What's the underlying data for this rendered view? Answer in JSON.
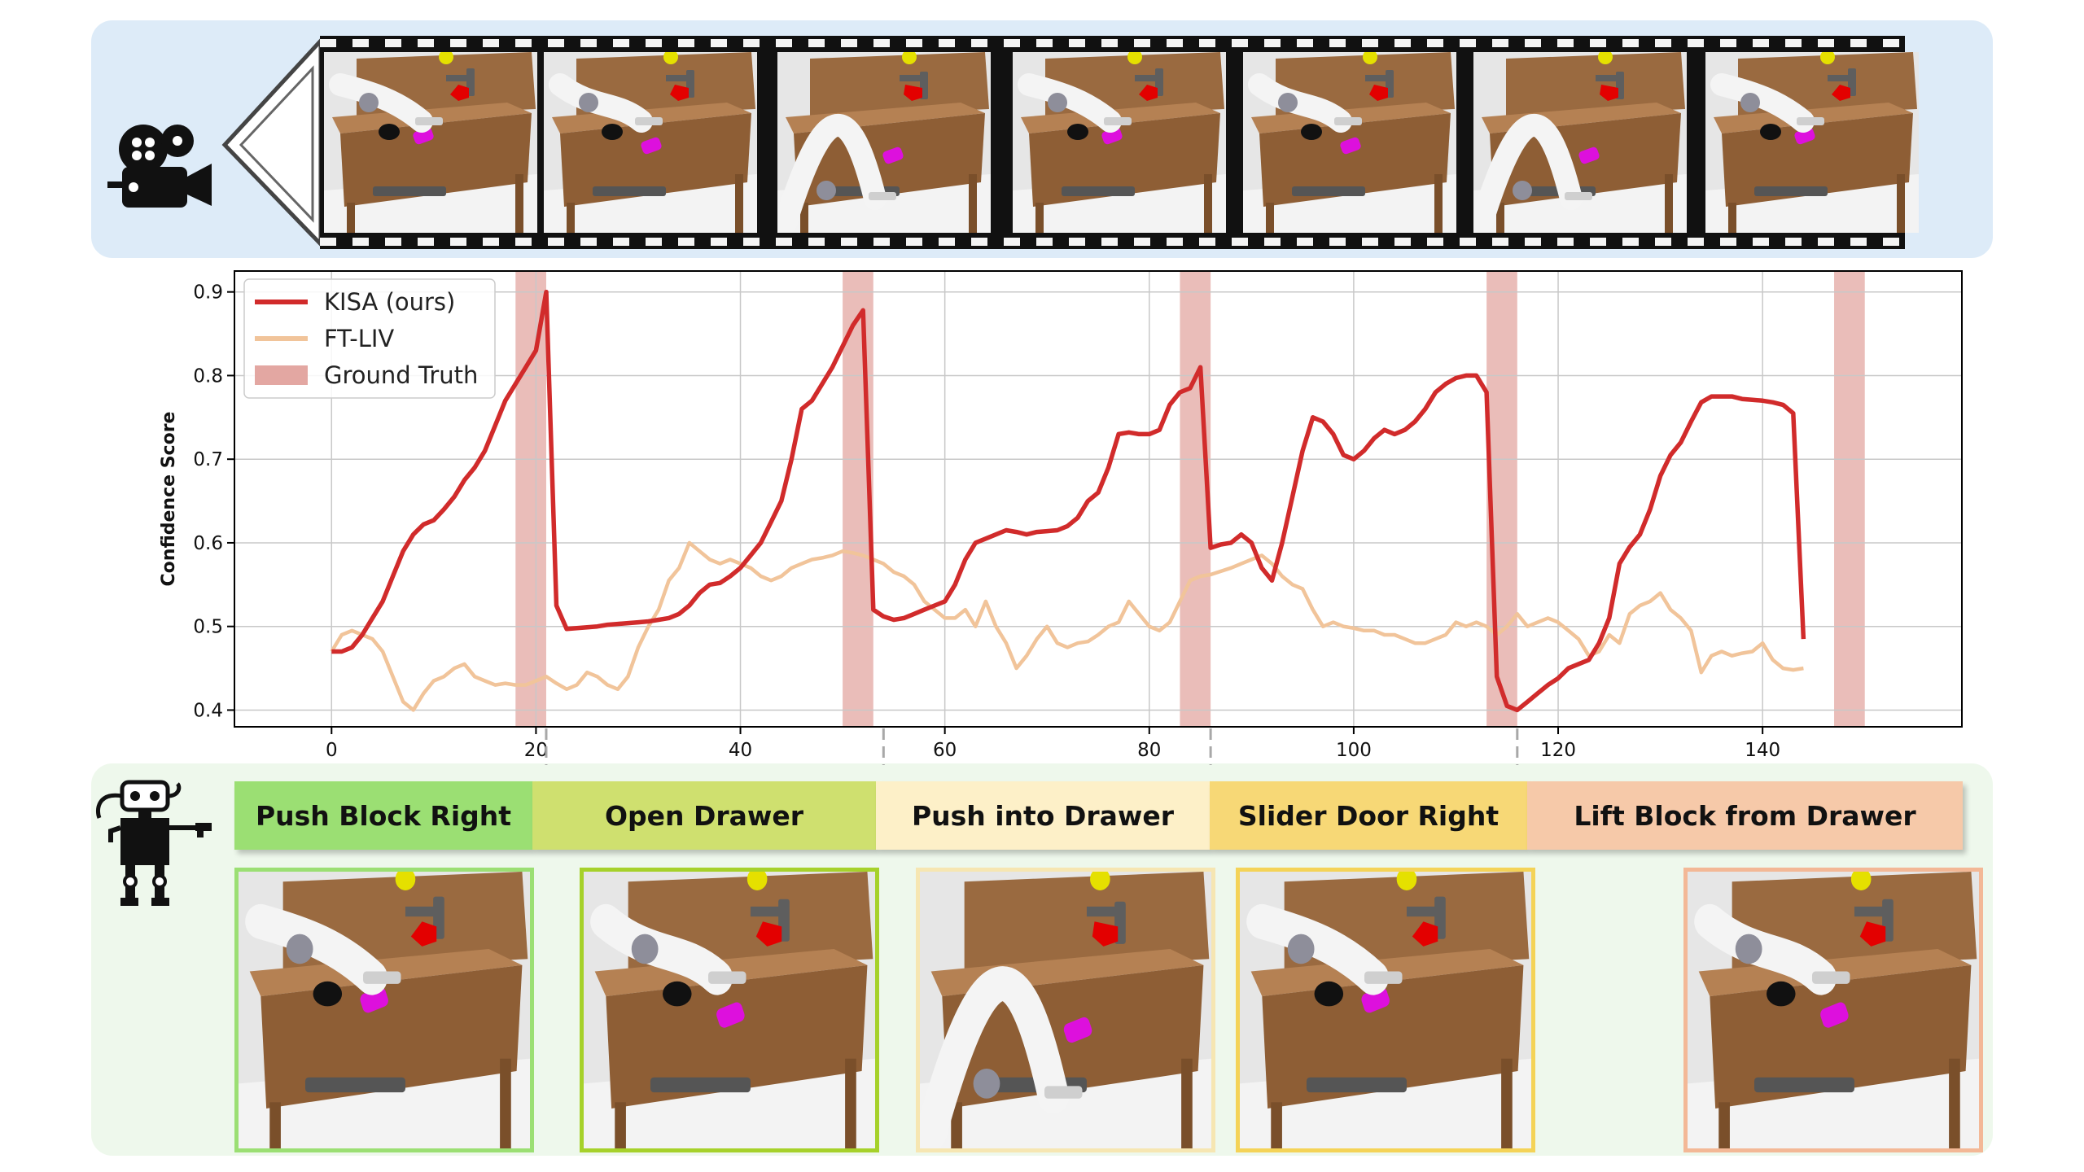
{
  "chart_data": {
    "type": "line",
    "xlabel": "",
    "ylabel": "Confidence Score",
    "xlim": [
      -9.5,
      159.5
    ],
    "ylim": [
      0.38,
      0.925
    ],
    "xticks": [
      0,
      20,
      40,
      60,
      80,
      100,
      120,
      140
    ],
    "yticks": [
      0.4,
      0.5,
      0.6,
      0.7,
      0.8,
      0.9
    ],
    "grid": true,
    "legend_position": "top-left",
    "series": [
      {
        "name": "KISA (ours)",
        "color": "#d12b2b",
        "points": [
          [
            0,
            0.47
          ],
          [
            1,
            0.47
          ],
          [
            2,
            0.475
          ],
          [
            3,
            0.49
          ],
          [
            4,
            0.51
          ],
          [
            5,
            0.53
          ],
          [
            6,
            0.56
          ],
          [
            7,
            0.59
          ],
          [
            8,
            0.61
          ],
          [
            9,
            0.622
          ],
          [
            10,
            0.627
          ],
          [
            11,
            0.64
          ],
          [
            12,
            0.655
          ],
          [
            13,
            0.675
          ],
          [
            14,
            0.69
          ],
          [
            15,
            0.71
          ],
          [
            16,
            0.74
          ],
          [
            17,
            0.77
          ],
          [
            18,
            0.79
          ],
          [
            19,
            0.81
          ],
          [
            20,
            0.83
          ],
          [
            21,
            0.9
          ],
          [
            22,
            0.525
          ],
          [
            23,
            0.497
          ],
          [
            24,
            0.498
          ],
          [
            25,
            0.499
          ],
          [
            26,
            0.5
          ],
          [
            27,
            0.502
          ],
          [
            28,
            0.503
          ],
          [
            29,
            0.504
          ],
          [
            30,
            0.505
          ],
          [
            31,
            0.506
          ],
          [
            32,
            0.508
          ],
          [
            33,
            0.51
          ],
          [
            34,
            0.515
          ],
          [
            35,
            0.525
          ],
          [
            36,
            0.54
          ],
          [
            37,
            0.55
          ],
          [
            38,
            0.552
          ],
          [
            39,
            0.56
          ],
          [
            40,
            0.57
          ],
          [
            41,
            0.585
          ],
          [
            42,
            0.6
          ],
          [
            43,
            0.625
          ],
          [
            44,
            0.65
          ],
          [
            45,
            0.7
          ],
          [
            46,
            0.76
          ],
          [
            47,
            0.77
          ],
          [
            48,
            0.79
          ],
          [
            49,
            0.81
          ],
          [
            50,
            0.835
          ],
          [
            51,
            0.86
          ],
          [
            52,
            0.878
          ],
          [
            53,
            0.52
          ],
          [
            54,
            0.512
          ],
          [
            55,
            0.508
          ],
          [
            56,
            0.51
          ],
          [
            57,
            0.515
          ],
          [
            58,
            0.52
          ],
          [
            59,
            0.525
          ],
          [
            60,
            0.53
          ],
          [
            61,
            0.55
          ],
          [
            62,
            0.58
          ],
          [
            63,
            0.6
          ],
          [
            64,
            0.605
          ],
          [
            65,
            0.61
          ],
          [
            66,
            0.615
          ],
          [
            67,
            0.613
          ],
          [
            68,
            0.61
          ],
          [
            69,
            0.613
          ],
          [
            70,
            0.614
          ],
          [
            71,
            0.615
          ],
          [
            72,
            0.62
          ],
          [
            73,
            0.63
          ],
          [
            74,
            0.65
          ],
          [
            75,
            0.66
          ],
          [
            76,
            0.69
          ],
          [
            77,
            0.73
          ],
          [
            78,
            0.732
          ],
          [
            79,
            0.73
          ],
          [
            80,
            0.73
          ],
          [
            81,
            0.735
          ],
          [
            82,
            0.765
          ],
          [
            83,
            0.78
          ],
          [
            84,
            0.785
          ],
          [
            85,
            0.81
          ],
          [
            86,
            0.594
          ],
          [
            87,
            0.598
          ],
          [
            88,
            0.6
          ],
          [
            89,
            0.61
          ],
          [
            90,
            0.6
          ],
          [
            91,
            0.57
          ],
          [
            92,
            0.555
          ],
          [
            93,
            0.6
          ],
          [
            94,
            0.655
          ],
          [
            95,
            0.71
          ],
          [
            96,
            0.75
          ],
          [
            97,
            0.745
          ],
          [
            98,
            0.73
          ],
          [
            99,
            0.705
          ],
          [
            100,
            0.7
          ],
          [
            101,
            0.71
          ],
          [
            102,
            0.725
          ],
          [
            103,
            0.735
          ],
          [
            104,
            0.73
          ],
          [
            105,
            0.735
          ],
          [
            106,
            0.745
          ],
          [
            107,
            0.76
          ],
          [
            108,
            0.78
          ],
          [
            109,
            0.79
          ],
          [
            110,
            0.797
          ],
          [
            111,
            0.8
          ],
          [
            112,
            0.8
          ],
          [
            113,
            0.78
          ],
          [
            114,
            0.44
          ],
          [
            115,
            0.405
          ],
          [
            116,
            0.4
          ],
          [
            117,
            0.41
          ],
          [
            118,
            0.42
          ],
          [
            119,
            0.43
          ],
          [
            120,
            0.438
          ],
          [
            121,
            0.45
          ],
          [
            122,
            0.455
          ],
          [
            123,
            0.46
          ],
          [
            124,
            0.48
          ],
          [
            125,
            0.51
          ],
          [
            126,
            0.575
          ],
          [
            127,
            0.595
          ],
          [
            128,
            0.61
          ],
          [
            129,
            0.64
          ],
          [
            130,
            0.68
          ],
          [
            131,
            0.705
          ],
          [
            132,
            0.72
          ],
          [
            133,
            0.745
          ],
          [
            134,
            0.768
          ],
          [
            135,
            0.775
          ],
          [
            136,
            0.775
          ],
          [
            137,
            0.775
          ],
          [
            138,
            0.772
          ],
          [
            139,
            0.771
          ],
          [
            140,
            0.77
          ],
          [
            141,
            0.768
          ],
          [
            142,
            0.765
          ],
          [
            143,
            0.755
          ],
          [
            144,
            0.485
          ]
        ]
      },
      {
        "name": "FT-LIV",
        "color": "#f1c49a",
        "points": [
          [
            0,
            0.47
          ],
          [
            1,
            0.49
          ],
          [
            2,
            0.495
          ],
          [
            3,
            0.49
          ],
          [
            4,
            0.485
          ],
          [
            5,
            0.47
          ],
          [
            6,
            0.44
          ],
          [
            7,
            0.41
          ],
          [
            8,
            0.4
          ],
          [
            9,
            0.42
          ],
          [
            10,
            0.435
          ],
          [
            11,
            0.44
          ],
          [
            12,
            0.45
          ],
          [
            13,
            0.455
          ],
          [
            14,
            0.44
          ],
          [
            15,
            0.435
          ],
          [
            16,
            0.43
          ],
          [
            17,
            0.432
          ],
          [
            18,
            0.43
          ],
          [
            19,
            0.43
          ],
          [
            20,
            0.435
          ],
          [
            21,
            0.44
          ],
          [
            22,
            0.432
          ],
          [
            23,
            0.425
          ],
          [
            24,
            0.43
          ],
          [
            25,
            0.445
          ],
          [
            26,
            0.44
          ],
          [
            27,
            0.43
          ],
          [
            28,
            0.425
          ],
          [
            29,
            0.44
          ],
          [
            30,
            0.475
          ],
          [
            31,
            0.5
          ],
          [
            32,
            0.52
          ],
          [
            33,
            0.555
          ],
          [
            34,
            0.57
          ],
          [
            35,
            0.6
          ],
          [
            36,
            0.59
          ],
          [
            37,
            0.58
          ],
          [
            38,
            0.575
          ],
          [
            39,
            0.58
          ],
          [
            40,
            0.575
          ],
          [
            41,
            0.57
          ],
          [
            42,
            0.56
          ],
          [
            43,
            0.555
          ],
          [
            44,
            0.56
          ],
          [
            45,
            0.57
          ],
          [
            46,
            0.575
          ],
          [
            47,
            0.58
          ],
          [
            48,
            0.582
          ],
          [
            49,
            0.585
          ],
          [
            50,
            0.59
          ],
          [
            51,
            0.588
          ],
          [
            52,
            0.585
          ],
          [
            53,
            0.58
          ],
          [
            54,
            0.575
          ],
          [
            55,
            0.565
          ],
          [
            56,
            0.56
          ],
          [
            57,
            0.55
          ],
          [
            58,
            0.53
          ],
          [
            59,
            0.52
          ],
          [
            60,
            0.51
          ],
          [
            61,
            0.51
          ],
          [
            62,
            0.52
          ],
          [
            63,
            0.5
          ],
          [
            64,
            0.53
          ],
          [
            65,
            0.5
          ],
          [
            66,
            0.48
          ],
          [
            67,
            0.45
          ],
          [
            68,
            0.465
          ],
          [
            69,
            0.485
          ],
          [
            70,
            0.5
          ],
          [
            71,
            0.48
          ],
          [
            72,
            0.475
          ],
          [
            73,
            0.48
          ],
          [
            74,
            0.482
          ],
          [
            75,
            0.49
          ],
          [
            76,
            0.5
          ],
          [
            77,
            0.505
          ],
          [
            78,
            0.53
          ],
          [
            79,
            0.515
          ],
          [
            80,
            0.5
          ],
          [
            81,
            0.495
          ],
          [
            82,
            0.505
          ],
          [
            83,
            0.53
          ],
          [
            84,
            0.555
          ],
          [
            85,
            0.56
          ],
          [
            86,
            0.562
          ],
          [
            87,
            0.566
          ],
          [
            88,
            0.57
          ],
          [
            89,
            0.575
          ],
          [
            90,
            0.58
          ],
          [
            91,
            0.585
          ],
          [
            92,
            0.575
          ],
          [
            93,
            0.56
          ],
          [
            94,
            0.55
          ],
          [
            95,
            0.545
          ],
          [
            96,
            0.52
          ],
          [
            97,
            0.5
          ],
          [
            98,
            0.505
          ],
          [
            99,
            0.5
          ],
          [
            100,
            0.498
          ],
          [
            101,
            0.495
          ],
          [
            102,
            0.495
          ],
          [
            103,
            0.49
          ],
          [
            104,
            0.49
          ],
          [
            105,
            0.485
          ],
          [
            106,
            0.48
          ],
          [
            107,
            0.48
          ],
          [
            108,
            0.485
          ],
          [
            109,
            0.49
          ],
          [
            110,
            0.505
          ],
          [
            111,
            0.5
          ],
          [
            112,
            0.505
          ],
          [
            113,
            0.5
          ],
          [
            114,
            0.49
          ],
          [
            115,
            0.5
          ],
          [
            116,
            0.515
          ],
          [
            117,
            0.5
          ],
          [
            118,
            0.505
          ],
          [
            119,
            0.51
          ],
          [
            120,
            0.505
          ],
          [
            121,
            0.495
          ],
          [
            122,
            0.485
          ],
          [
            123,
            0.465
          ],
          [
            124,
            0.47
          ],
          [
            125,
            0.49
          ],
          [
            126,
            0.48
          ],
          [
            127,
            0.515
          ],
          [
            128,
            0.525
          ],
          [
            129,
            0.53
          ],
          [
            130,
            0.54
          ],
          [
            131,
            0.52
          ],
          [
            132,
            0.51
          ],
          [
            133,
            0.495
          ],
          [
            134,
            0.445
          ],
          [
            135,
            0.465
          ],
          [
            136,
            0.47
          ],
          [
            137,
            0.465
          ],
          [
            138,
            0.468
          ],
          [
            139,
            0.47
          ],
          [
            140,
            0.48
          ],
          [
            141,
            0.46
          ],
          [
            142,
            0.45
          ],
          [
            143,
            0.448
          ],
          [
            144,
            0.45
          ]
        ]
      }
    ],
    "ground_truth_label": "Ground Truth",
    "ground_truth_color": "#e3a7a2",
    "ground_truth_spans": [
      [
        18,
        21
      ],
      [
        50,
        53
      ],
      [
        83,
        86
      ],
      [
        113,
        116
      ],
      [
        147,
        150
      ]
    ],
    "stage_boundaries": [
      21,
      54,
      86,
      116
    ]
  },
  "stages": [
    {
      "label": "Push Block Right",
      "color": "#9bdf73",
      "border": "#9bdf73"
    },
    {
      "label": "Open Drawer",
      "color": "#cfe06f",
      "border": "#a6d12a"
    },
    {
      "label": "Push into Drawer",
      "color": "#fdf0c8",
      "border": "#f6e6b2"
    },
    {
      "label": "Slider Door Right",
      "color": "#f7d876",
      "border": "#f4d357"
    },
    {
      "label": "Lift Block from Drawer",
      "color": "#f6c9a9",
      "border": "#f3b896"
    }
  ],
  "icons": {
    "camera": "movie-camera-icon",
    "robot": "robot-icon"
  }
}
